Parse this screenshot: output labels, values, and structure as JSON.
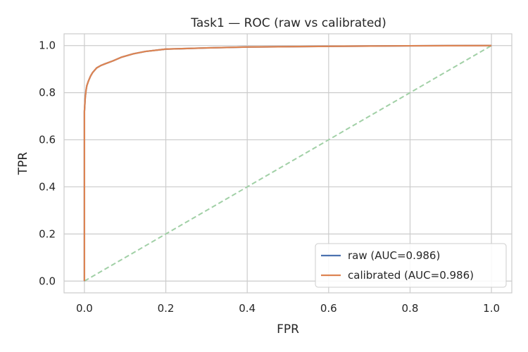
{
  "chart_data": {
    "type": "line",
    "title": "Task1 — ROC (raw vs calibrated)",
    "xlabel": "FPR",
    "ylabel": "TPR",
    "xlim": [
      -0.05,
      1.05
    ],
    "ylim": [
      -0.05,
      1.05
    ],
    "xticks": [
      0.0,
      0.2,
      0.4,
      0.6,
      0.8,
      1.0
    ],
    "yticks": [
      0.0,
      0.2,
      0.4,
      0.6,
      0.8,
      1.0
    ],
    "xtick_labels": [
      "0.0",
      "0.2",
      "0.4",
      "0.6",
      "0.8",
      "1.0"
    ],
    "ytick_labels": [
      "0.0",
      "0.2",
      "0.4",
      "0.6",
      "0.8",
      "1.0"
    ],
    "grid": true,
    "legend_position": "lower-right",
    "series": [
      {
        "name": "raw (AUC=0.986)",
        "color": "#4c72b0",
        "style": "solid",
        "x": [
          0.0,
          0.0,
          0.002,
          0.004,
          0.006,
          0.01,
          0.015,
          0.02,
          0.03,
          0.04,
          0.05,
          0.07,
          0.09,
          0.12,
          0.15,
          0.2,
          0.3,
          0.4,
          0.6,
          0.8,
          1.0
        ],
        "y": [
          0.0,
          0.72,
          0.78,
          0.81,
          0.83,
          0.85,
          0.87,
          0.885,
          0.905,
          0.915,
          0.922,
          0.935,
          0.95,
          0.965,
          0.975,
          0.985,
          0.99,
          0.994,
          0.997,
          0.999,
          1.0
        ]
      },
      {
        "name": "calibrated (AUC=0.986)",
        "color": "#dd8452",
        "style": "solid",
        "x": [
          0.0,
          0.0,
          0.002,
          0.004,
          0.006,
          0.01,
          0.015,
          0.02,
          0.03,
          0.04,
          0.05,
          0.07,
          0.09,
          0.12,
          0.15,
          0.2,
          0.3,
          0.4,
          0.6,
          0.8,
          1.0
        ],
        "y": [
          0.0,
          0.72,
          0.78,
          0.81,
          0.83,
          0.85,
          0.87,
          0.885,
          0.905,
          0.915,
          0.922,
          0.935,
          0.95,
          0.965,
          0.975,
          0.985,
          0.99,
          0.994,
          0.997,
          0.999,
          1.0
        ]
      },
      {
        "name": "",
        "color": "#a1d0a6",
        "style": "dashed",
        "x": [
          0.0,
          1.0
        ],
        "y": [
          0.0,
          1.0
        ]
      }
    ]
  }
}
